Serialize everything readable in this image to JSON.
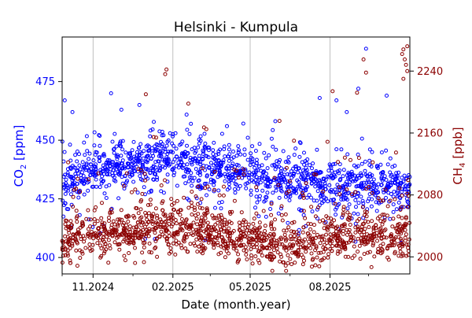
{
  "chart_data": {
    "type": "scatter",
    "title": "Helsinki - Kumpula",
    "xlabel": "Date (month.year)",
    "ylabel_left": {
      "main": "CO",
      "sub": "2",
      "unit": " [ppm]"
    },
    "ylabel_right": {
      "main": "CH",
      "sub": "4",
      "unit": " [ppb]"
    },
    "x_range_days": [
      0,
      270
    ],
    "x_ticks": [
      {
        "label": "11.2024",
        "day": 24
      },
      {
        "label": "02.2025",
        "day": 86
      },
      {
        "label": "05.2025",
        "day": 146
      },
      {
        "label": "08.2025",
        "day": 208
      }
    ],
    "x_minor_days": [
      0,
      55,
      115,
      177,
      238
    ],
    "left_axis": {
      "range": [
        393,
        494
      ],
      "ticks": [
        400,
        425,
        450,
        475
      ],
      "color": "#0000ff"
    },
    "right_axis": {
      "range": [
        1978,
        2284
      ],
      "ticks": [
        2000,
        2080,
        2160,
        2240
      ],
      "color": "#8b0000"
    },
    "grid": "x-only",
    "series": [
      {
        "name": "CO2",
        "axis": "left",
        "color": "#0000ff",
        "baseline": [
          [
            0,
            430
          ],
          [
            20,
            436
          ],
          [
            40,
            438
          ],
          [
            60,
            440
          ],
          [
            80,
            441
          ],
          [
            100,
            440
          ],
          [
            120,
            438
          ],
          [
            140,
            437
          ],
          [
            160,
            434
          ],
          [
            180,
            432
          ],
          [
            200,
            431
          ],
          [
            220,
            430
          ],
          [
            240,
            430
          ],
          [
            260,
            429
          ],
          [
            270,
            428
          ]
        ],
        "spikes": [
          [
            2,
            467
          ],
          [
            8,
            462
          ],
          [
            17,
            449
          ],
          [
            38,
            470
          ],
          [
            46,
            463
          ],
          [
            60,
            465
          ],
          [
            88,
            453
          ],
          [
            100,
            457
          ],
          [
            128,
            456
          ],
          [
            200,
            468
          ],
          [
            213,
            467
          ],
          [
            221,
            462
          ],
          [
            230,
            472
          ],
          [
            236,
            489
          ],
          [
            252,
            469
          ]
        ]
      },
      {
        "name": "CH4",
        "axis": "right",
        "color": "#8b0000",
        "baseline": [
          [
            0,
            2020
          ],
          [
            20,
            2028
          ],
          [
            40,
            2030
          ],
          [
            60,
            2032
          ],
          [
            80,
            2034
          ],
          [
            100,
            2032
          ],
          [
            120,
            2028
          ],
          [
            140,
            2022
          ],
          [
            160,
            2016
          ],
          [
            180,
            2014
          ],
          [
            200,
            2018
          ],
          [
            220,
            2025
          ],
          [
            240,
            2030
          ],
          [
            260,
            2028
          ],
          [
            270,
            2020
          ]
        ],
        "spikes": [
          [
            65,
            2210
          ],
          [
            80,
            2236
          ],
          [
            81,
            2242
          ],
          [
            98,
            2198
          ],
          [
            112,
            2165
          ],
          [
            180,
            2150
          ],
          [
            210,
            2214
          ],
          [
            229,
            2212
          ],
          [
            234,
            2255
          ],
          [
            236,
            2238
          ],
          [
            264,
            2262
          ],
          [
            265,
            2268
          ],
          [
            266,
            2255
          ],
          [
            267,
            2248
          ],
          [
            268,
            2240
          ],
          [
            268,
            2272
          ],
          [
            265,
            2230
          ]
        ]
      }
    ]
  }
}
